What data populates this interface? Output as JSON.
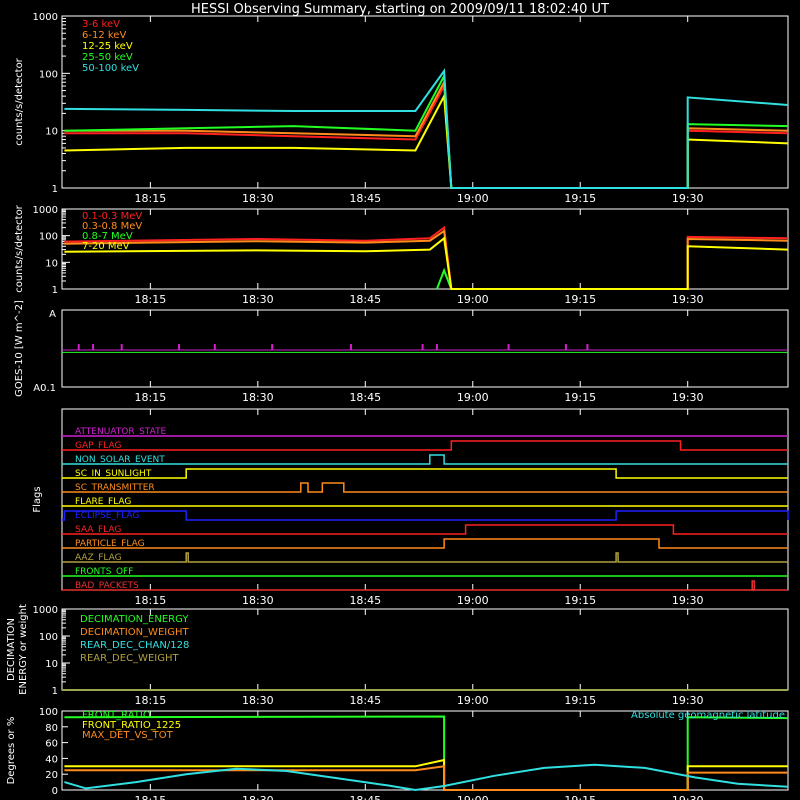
{
  "title": "HESSI Observing Summary, starting on 2009/09/11 18:02:40 UT",
  "time_ticks": [
    "18:15",
    "18:30",
    "18:45",
    "19:00",
    "19:15",
    "19:30"
  ],
  "colors": {
    "background": "#000000",
    "axis": "#ffffff",
    "red": "#ff2020",
    "orange": "#ff8c1a",
    "yellow": "#ffff00",
    "green": "#22ff22",
    "cyan": "#30e0e0",
    "magenta": "#d020d0",
    "blue": "#2020ff",
    "olive": "#b0a040",
    "flag_red": "#e83030"
  },
  "chart_data": [
    {
      "type": "line",
      "name": "hxr-count-rates",
      "ylabel": "counts/s/detector",
      "yscale": "log",
      "ylim": [
        1,
        1000
      ],
      "y_ticks": [
        "1",
        "10",
        "100",
        "1000"
      ],
      "x_range": [
        "18:02:40",
        "19:44"
      ],
      "legend": "top-left",
      "series": [
        {
          "name": "3-6 keV",
          "color": "red",
          "points": [
            [
              "18:03",
              9
            ],
            [
              "18:20",
              9
            ],
            [
              "18:35",
              8
            ],
            [
              "18:52",
              7
            ],
            [
              "18:56",
              60
            ],
            [
              "18:57",
              1
            ],
            [
              "19:30",
              1
            ],
            [
              "19:30",
              10
            ],
            [
              "19:44",
              9
            ]
          ]
        },
        {
          "name": "6-12 keV",
          "color": "orange",
          "points": [
            [
              "18:03",
              10
            ],
            [
              "18:20",
              10
            ],
            [
              "18:35",
              9
            ],
            [
              "18:52",
              8
            ],
            [
              "18:56",
              70
            ],
            [
              "18:57",
              1
            ],
            [
              "19:30",
              1
            ],
            [
              "19:30",
              11
            ],
            [
              "19:44",
              10
            ]
          ]
        },
        {
          "name": "12-25 keV",
          "color": "yellow",
          "points": [
            [
              "18:03",
              4.5
            ],
            [
              "18:20",
              5
            ],
            [
              "18:35",
              5
            ],
            [
              "18:52",
              4.5
            ],
            [
              "18:56",
              40
            ],
            [
              "18:57",
              1
            ],
            [
              "19:30",
              1
            ],
            [
              "19:30",
              7
            ],
            [
              "19:44",
              6
            ]
          ]
        },
        {
          "name": "25-50 keV",
          "color": "green",
          "points": [
            [
              "18:03",
              10
            ],
            [
              "18:20",
              11
            ],
            [
              "18:35",
              12
            ],
            [
              "18:52",
              10
            ],
            [
              "18:56",
              90
            ],
            [
              "18:57",
              1
            ],
            [
              "19:30",
              1
            ],
            [
              "19:30",
              13
            ],
            [
              "19:44",
              12
            ]
          ]
        },
        {
          "name": "50-100 keV",
          "color": "cyan",
          "points": [
            [
              "18:03",
              24
            ],
            [
              "18:20",
              23
            ],
            [
              "18:35",
              22
            ],
            [
              "18:52",
              22
            ],
            [
              "18:56",
              110
            ],
            [
              "18:57",
              1
            ],
            [
              "19:30",
              1
            ],
            [
              "19:30",
              38
            ],
            [
              "19:44",
              28
            ]
          ]
        }
      ]
    },
    {
      "type": "line",
      "name": "gamma-count-rates",
      "ylabel": "counts/s/detector",
      "yscale": "log",
      "ylim": [
        1,
        1000
      ],
      "y_ticks": [
        "1",
        "10",
        "100",
        "1000"
      ],
      "legend": "top-left",
      "series": [
        {
          "name": "0.1-0.3 MeV",
          "color": "red",
          "points": [
            [
              "18:03",
              60
            ],
            [
              "18:30",
              75
            ],
            [
              "18:45",
              65
            ],
            [
              "18:54",
              80
            ],
            [
              "18:56",
              200
            ],
            [
              "18:57",
              1
            ],
            [
              "19:30",
              1
            ],
            [
              "19:30",
              90
            ],
            [
              "19:44",
              80
            ]
          ]
        },
        {
          "name": "0.3-0.8 MeV",
          "color": "orange",
          "points": [
            [
              "18:03",
              50
            ],
            [
              "18:30",
              62
            ],
            [
              "18:45",
              55
            ],
            [
              "18:54",
              65
            ],
            [
              "18:56",
              150
            ],
            [
              "18:57",
              1
            ],
            [
              "19:30",
              1
            ],
            [
              "19:30",
              75
            ],
            [
              "19:44",
              65
            ]
          ]
        },
        {
          "name": "0.8-7 MeV",
          "color": "green",
          "points": [
            [
              "18:55",
              1
            ],
            [
              "18:56",
              5
            ],
            [
              "18:57",
              1
            ]
          ]
        },
        {
          "name": "7-20 MeV",
          "color": "yellow",
          "points": [
            [
              "18:03",
              25
            ],
            [
              "18:30",
              28
            ],
            [
              "18:45",
              26
            ],
            [
              "18:54",
              30
            ],
            [
              "18:56",
              80
            ],
            [
              "18:57",
              1
            ],
            [
              "19:30",
              1
            ],
            [
              "19:30",
              40
            ],
            [
              "19:44",
              30
            ]
          ]
        }
      ]
    },
    {
      "type": "line",
      "name": "goes-flux",
      "ylabel": "GOES-10 [W m^-2]",
      "y_ticks": [
        "A",
        "A0.1"
      ],
      "series": [
        {
          "name": "GOES-10 long",
          "color": "green",
          "level": 0.55
        },
        {
          "name": "GOES-10 short",
          "color": "magenta",
          "level": 0.52,
          "spikes": [
            "18:05",
            "18:07",
            "18:11",
            "18:19",
            "18:24",
            "18:32",
            "18:43",
            "18:53",
            "18:55",
            "19:05",
            "19:13",
            "19:16"
          ]
        }
      ]
    },
    {
      "type": "line",
      "name": "flags",
      "ylabel": "Flags",
      "flags": [
        {
          "label": "ATTENUATOR_STATE",
          "color": "magenta",
          "high": []
        },
        {
          "label": "GAP_FLAG",
          "color": "red",
          "high": [
            [
              "18:57",
              "19:29"
            ]
          ]
        },
        {
          "label": "NON_SOLAR_EVENT",
          "color": "cyan",
          "high": [
            [
              "18:54",
              "18:56"
            ]
          ]
        },
        {
          "label": "SC_IN_SUNLIGHT",
          "color": "yellow",
          "high": [
            [
              "18:20",
              "19:20"
            ]
          ]
        },
        {
          "label": "SC_TRANSMITTER",
          "color": "orange",
          "high": [
            [
              "18:36",
              "18:37"
            ],
            [
              "18:39",
              "18:42"
            ]
          ]
        },
        {
          "label": "FLARE_FLAG",
          "color": "yellow",
          "high": []
        },
        {
          "label": "ECLIPSE_FLAG",
          "color": "blue",
          "high": [
            [
              "18:03",
              "18:20"
            ],
            [
              "19:20",
              "19:44"
            ]
          ]
        },
        {
          "label": "SAA_FLAG",
          "color": "red",
          "high": [
            [
              "18:59",
              "19:28"
            ]
          ]
        },
        {
          "label": "PARTICLE_FLAG",
          "color": "orange",
          "high": [
            [
              "18:56",
              "19:26"
            ]
          ]
        },
        {
          "label": "AAZ_FLAG",
          "color": "olive",
          "high": [
            [
              "18:20",
              "18:20"
            ],
            [
              "19:20",
              "19:20"
            ]
          ]
        },
        {
          "label": "FRONTS_OFF",
          "color": "green",
          "high": []
        },
        {
          "label": "BAD_PACKETS",
          "color": "flag_red",
          "high": [
            [
              "19:39",
              "19:39"
            ]
          ]
        }
      ]
    },
    {
      "type": "line",
      "name": "decimation",
      "ylabel": "DECIMATION ENERGY or weight",
      "yscale": "log",
      "ylim": [
        1,
        1000
      ],
      "y_ticks": [
        "1",
        "10",
        "100",
        "1000"
      ],
      "series": [
        {
          "name": "DECIMATION_ENERGY",
          "color": "green",
          "value": 0
        },
        {
          "name": "DECIMATION_WEIGHT",
          "color": "orange",
          "value": 0
        },
        {
          "name": "REAR_DEC_CHAN/128",
          "color": "cyan",
          "value": 0
        },
        {
          "name": "REAR_DEC_WEIGHT",
          "color": "olive",
          "value": 1
        }
      ]
    },
    {
      "type": "line",
      "name": "ratios",
      "ylabel": "Degrees or %",
      "ylim": [
        0,
        100
      ],
      "y_ticks": [
        "0",
        "20",
        "40",
        "60",
        "80",
        "100"
      ],
      "annotation": "Absolute geomagnetic latitude",
      "series": [
        {
          "name": "FRONT_RATIO",
          "color": "green",
          "points": [
            [
              "18:03",
              92
            ],
            [
              "18:56",
              93
            ],
            [
              "18:56",
              0
            ],
            [
              "19:30",
              0
            ],
            [
              "19:30",
              92
            ],
            [
              "19:44",
              91
            ]
          ]
        },
        {
          "name": "FRONT_RATIO_1225",
          "color": "yellow",
          "points": [
            [
              "18:03",
              30
            ],
            [
              "18:52",
              30
            ],
            [
              "18:56",
              38
            ],
            [
              "18:56",
              0
            ],
            [
              "19:30",
              0
            ],
            [
              "19:30",
              30
            ],
            [
              "19:44",
              30
            ]
          ]
        },
        {
          "name": "MAX_DET_VS_TOT",
          "color": "orange",
          "points": [
            [
              "18:03",
              25
            ],
            [
              "18:52",
              25
            ],
            [
              "18:56",
              30
            ],
            [
              "18:56",
              0
            ],
            [
              "19:30",
              0
            ],
            [
              "19:30",
              22
            ],
            [
              "19:44",
              22
            ]
          ]
        },
        {
          "name": "Absolute geomagnetic latitude",
          "color": "cyan",
          "points": [
            [
              "18:03",
              10
            ],
            [
              "18:06",
              2
            ],
            [
              "18:13",
              10
            ],
            [
              "18:20",
              20
            ],
            [
              "18:27",
              27
            ],
            [
              "18:34",
              24
            ],
            [
              "18:41",
              15
            ],
            [
              "18:48",
              6
            ],
            [
              "18:52",
              0
            ],
            [
              "18:56",
              5
            ],
            [
              "19:03",
              18
            ],
            [
              "19:10",
              28
            ],
            [
              "19:17",
              32
            ],
            [
              "19:24",
              28
            ],
            [
              "19:31",
              16
            ],
            [
              "19:37",
              8
            ],
            [
              "19:44",
              4
            ]
          ]
        }
      ]
    }
  ]
}
